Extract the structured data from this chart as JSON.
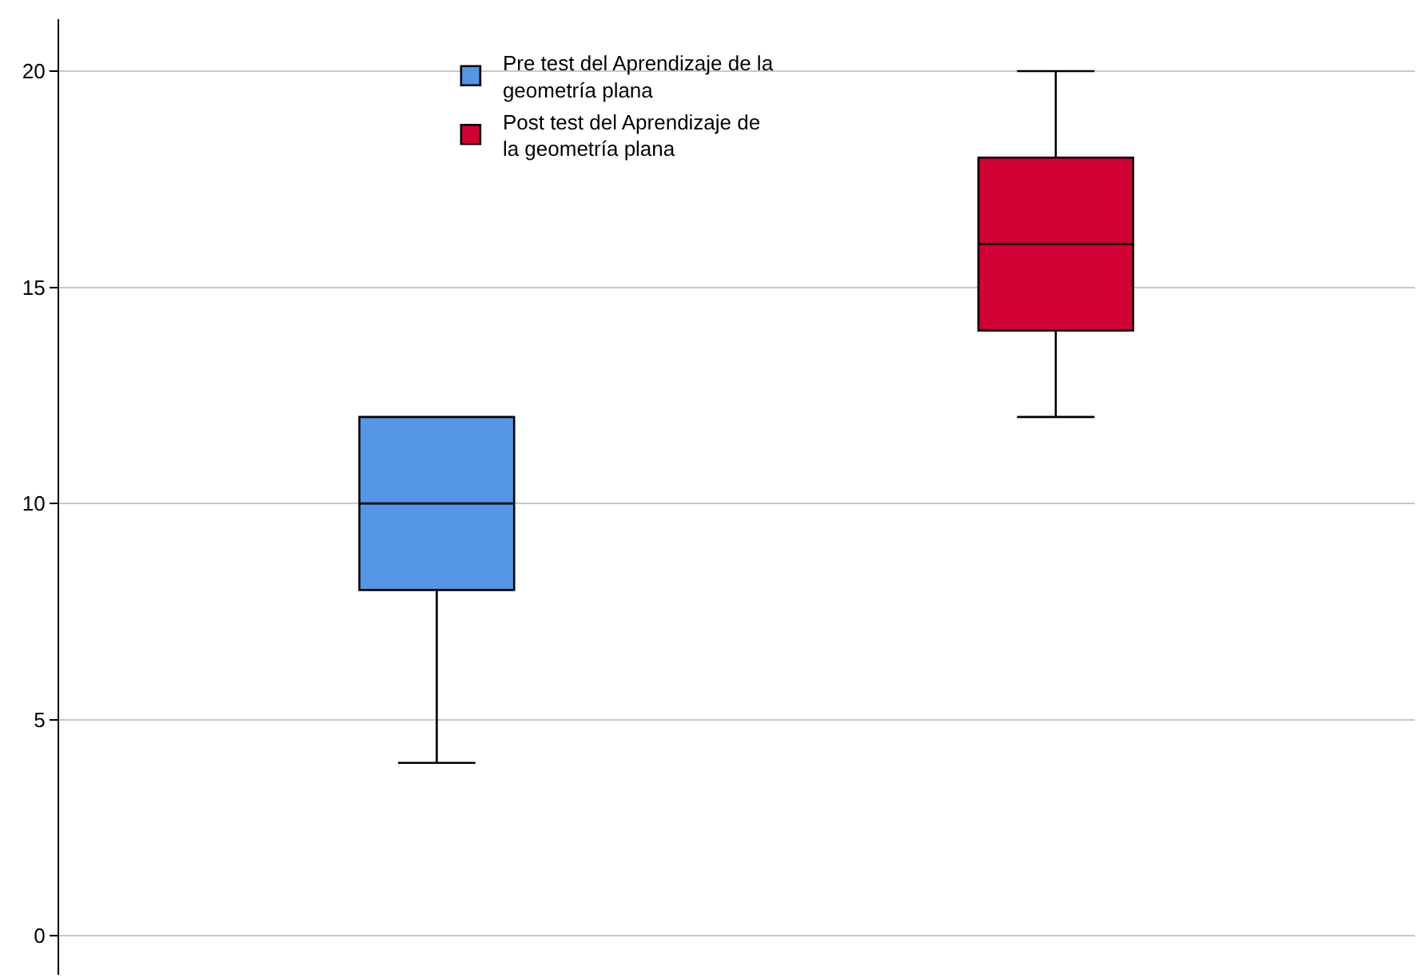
{
  "chart_data": {
    "type": "box",
    "categories": [
      null,
      null
    ],
    "series": [
      {
        "name": "Pre test del Aprendizaje de la geometría plana",
        "color": "#5596e6",
        "boxes": [
          {
            "low": 4,
            "q1": 8,
            "median": 10,
            "q3": 12,
            "high": 12
          },
          null
        ]
      },
      {
        "name": "Post test del Aprendizaje de la geometría plana",
        "color": "#d20034",
        "boxes": [
          null,
          {
            "low": 12,
            "q1": 14,
            "median": 16,
            "q3": 18,
            "high": 20
          }
        ]
      }
    ],
    "ylim": [
      -0.9,
      21.2
    ],
    "yticks": [
      0,
      5,
      10,
      15,
      20
    ],
    "grid": "y",
    "legend": "top",
    "tick_labels": "y"
  }
}
